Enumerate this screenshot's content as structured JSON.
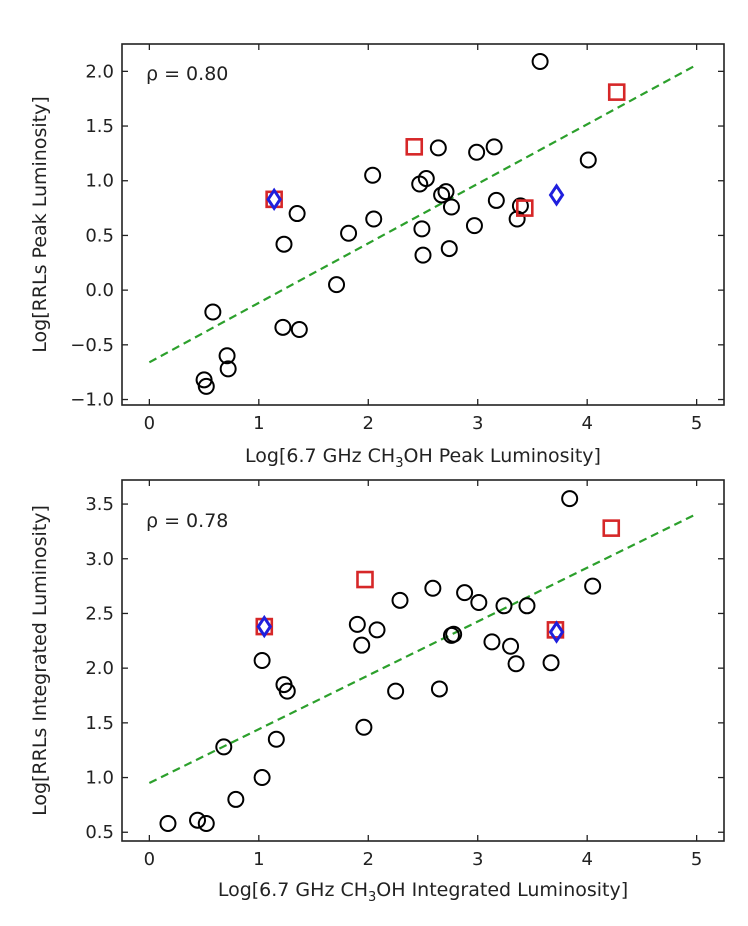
{
  "chart_data": [
    {
      "type": "scatter",
      "xlabel_parts": [
        "Log[6.7 GHz CH",
        "3",
        "OH Peak Luminosity]"
      ],
      "ylabel": "Log[RRLs Peak Luminosity]",
      "annotation": "ρ = 0.80",
      "xlim": [
        -0.25,
        5.25
      ],
      "ylim": [
        -1.05,
        2.25
      ],
      "xticks": [
        0,
        1,
        2,
        3,
        4,
        5
      ],
      "xtick_labels": [
        "0",
        "1",
        "2",
        "3",
        "4",
        "5"
      ],
      "yticks": [
        -1.0,
        -0.5,
        0.0,
        0.5,
        1.0,
        1.5,
        2.0
      ],
      "ytick_labels": [
        "−1.0",
        "−0.5",
        "0.0",
        "0.5",
        "1.0",
        "1.5",
        "2.0"
      ],
      "fit_line": {
        "x": [
          0,
          5
        ],
        "y": [
          -0.66,
          2.06
        ],
        "color": "#2ca02c",
        "style": "dashed"
      },
      "series": [
        {
          "marker": "circle",
          "color": "#000000",
          "points": [
            [
              0.5,
              -0.82
            ],
            [
              0.52,
              -0.88
            ],
            [
              0.58,
              -0.2
            ],
            [
              0.71,
              -0.6
            ],
            [
              0.72,
              -0.72
            ],
            [
              1.22,
              -0.34
            ],
            [
              1.23,
              0.42
            ],
            [
              1.35,
              0.7
            ],
            [
              1.37,
              -0.36
            ],
            [
              1.71,
              0.05
            ],
            [
              1.82,
              0.52
            ],
            [
              2.04,
              1.05
            ],
            [
              2.05,
              0.65
            ],
            [
              2.47,
              0.97
            ],
            [
              2.49,
              0.56
            ],
            [
              2.5,
              0.32
            ],
            [
              2.53,
              1.02
            ],
            [
              2.64,
              1.3
            ],
            [
              2.67,
              0.87
            ],
            [
              2.71,
              0.9
            ],
            [
              2.74,
              0.38
            ],
            [
              2.76,
              0.76
            ],
            [
              2.97,
              0.59
            ],
            [
              2.99,
              1.26
            ],
            [
              3.15,
              1.31
            ],
            [
              3.17,
              0.82
            ],
            [
              3.36,
              0.65
            ],
            [
              3.39,
              0.77
            ],
            [
              3.57,
              2.09
            ],
            [
              4.01,
              1.19
            ]
          ]
        },
        {
          "marker": "square",
          "color": "#d62728",
          "points": [
            [
              1.14,
              0.83
            ],
            [
              2.42,
              1.31
            ],
            [
              3.43,
              0.75
            ],
            [
              4.27,
              1.81
            ]
          ]
        },
        {
          "marker": "diamond",
          "color": "#1f1fdd",
          "points": [
            [
              1.14,
              0.83
            ],
            [
              3.72,
              0.87
            ]
          ]
        }
      ]
    },
    {
      "type": "scatter",
      "xlabel_parts": [
        "Log[6.7 GHz CH",
        "3",
        "OH Integrated Luminosity]"
      ],
      "ylabel": "Log[RRLs Integrated Luminosity]",
      "annotation": "ρ = 0.78",
      "xlim": [
        -0.25,
        5.25
      ],
      "ylim": [
        0.42,
        3.72
      ],
      "xticks": [
        0,
        1,
        2,
        3,
        4,
        5
      ],
      "xtick_labels": [
        "0",
        "1",
        "2",
        "3",
        "4",
        "5"
      ],
      "yticks": [
        0.5,
        1.0,
        1.5,
        2.0,
        2.5,
        3.0,
        3.5
      ],
      "ytick_labels": [
        "0.5",
        "1.0",
        "1.5",
        "2.0",
        "2.5",
        "3.0",
        "3.5"
      ],
      "fit_line": {
        "x": [
          0,
          5
        ],
        "y": [
          0.95,
          3.41
        ],
        "color": "#2ca02c",
        "style": "dashed"
      },
      "series": [
        {
          "marker": "circle",
          "color": "#000000",
          "points": [
            [
              0.17,
              0.58
            ],
            [
              0.44,
              0.61
            ],
            [
              0.52,
              0.58
            ],
            [
              0.68,
              1.28
            ],
            [
              0.79,
              0.8
            ],
            [
              1.03,
              1.0
            ],
            [
              1.03,
              2.07
            ],
            [
              1.16,
              1.35
            ],
            [
              1.23,
              1.85
            ],
            [
              1.26,
              1.79
            ],
            [
              1.9,
              2.4
            ],
            [
              1.94,
              2.21
            ],
            [
              1.96,
              1.46
            ],
            [
              2.08,
              2.35
            ],
            [
              2.25,
              1.79
            ],
            [
              2.29,
              2.62
            ],
            [
              2.59,
              2.73
            ],
            [
              2.65,
              1.81
            ],
            [
              2.76,
              2.3
            ],
            [
              2.78,
              2.31
            ],
            [
              2.88,
              2.69
            ],
            [
              3.01,
              2.6
            ],
            [
              3.13,
              2.24
            ],
            [
              3.24,
              2.57
            ],
            [
              3.3,
              2.2
            ],
            [
              3.35,
              2.04
            ],
            [
              3.45,
              2.57
            ],
            [
              3.67,
              2.05
            ],
            [
              3.84,
              3.55
            ],
            [
              4.05,
              2.75
            ]
          ]
        },
        {
          "marker": "square",
          "color": "#d62728",
          "points": [
            [
              1.05,
              2.38
            ],
            [
              1.97,
              2.81
            ],
            [
              3.71,
              2.35
            ],
            [
              4.22,
              3.28
            ]
          ]
        },
        {
          "marker": "diamond",
          "color": "#1f1fdd",
          "points": [
            [
              1.05,
              2.38
            ],
            [
              3.72,
              2.33
            ]
          ]
        }
      ]
    }
  ]
}
